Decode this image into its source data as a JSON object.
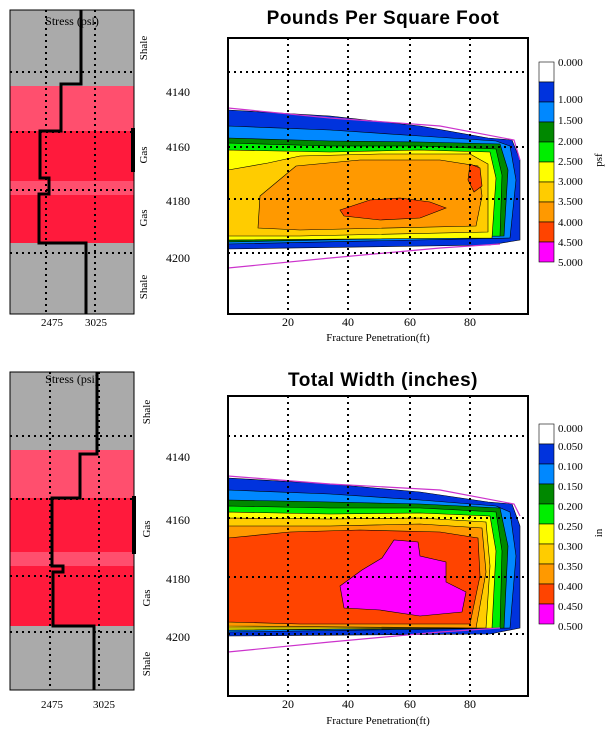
{
  "colors": {
    "gray": "#aaaaaa",
    "pink_layer": "#ff4f6e",
    "red_layer": "#ff1a3c",
    "outline": "#000000",
    "envelope": "#cc33cc"
  },
  "panels": [
    {
      "title": "Pounds Per Square Foot",
      "x_label": "Fracture Penetration(ft)",
      "x_ticks": [
        "20",
        "40",
        "60",
        "80"
      ],
      "stress_label": "Stress (psi)",
      "stress_ticks": [
        "2475",
        "3025"
      ],
      "depth_ticks": [
        "4140",
        "4160",
        "4180",
        "4200"
      ],
      "lithology": [
        "Shale",
        "Gas",
        "Gas",
        "Shale"
      ],
      "colorbar_unit": "psf",
      "colorbar_levels": [
        "0.000",
        "1.000",
        "1.500",
        "2.000",
        "2.500",
        "3.000",
        "3.500",
        "4.000",
        "4.500",
        "5.000"
      ]
    },
    {
      "title": "Total Width (inches)",
      "x_label": "Fracture Penetration(ft)",
      "x_ticks": [
        "20",
        "40",
        "60",
        "80"
      ],
      "stress_label": "Stress (psi)",
      "stress_ticks": [
        "2475",
        "3025"
      ],
      "depth_ticks": [
        "4140",
        "4160",
        "4180",
        "4200"
      ],
      "lithology": [
        "Shale",
        "Gas",
        "Gas",
        "Shale"
      ],
      "colorbar_unit": "in",
      "colorbar_levels": [
        "0.000",
        "0.050",
        "0.100",
        "0.150",
        "0.200",
        "0.250",
        "0.300",
        "0.350",
        "0.400",
        "0.450",
        "0.500"
      ]
    }
  ],
  "chart_data": [
    {
      "type": "heatmap",
      "title": "Pounds Per Square Foot",
      "xlabel": "Fracture Penetration(ft)",
      "x_ticks": [
        20,
        40,
        60,
        80
      ],
      "xlim": [
        0,
        100
      ],
      "colorbar": {
        "unit": "psf",
        "levels": [
          0.0,
          1.0,
          1.5,
          2.0,
          2.5,
          3.0,
          3.5,
          4.0,
          4.5,
          5.0
        ],
        "colors": [
          "#ffffff",
          "#0033dd",
          "#0088ff",
          "#008800",
          "#00ee00",
          "#ffff00",
          "#ffcc00",
          "#ff9900",
          "#ff4400",
          "#ff00ff"
        ]
      },
      "stress_profile": {
        "xlabel": "Stress (psi)",
        "x_ticks": [
          2475,
          3025
        ],
        "depth_ticks": [
          4140,
          4160,
          4180,
          4200
        ],
        "zones": [
          "Shale",
          "Gas",
          "Gas",
          "Shale"
        ]
      }
    },
    {
      "type": "heatmap",
      "title": "Total Width (inches)",
      "xlabel": "Fracture Penetration(ft)",
      "x_ticks": [
        20,
        40,
        60,
        80
      ],
      "xlim": [
        0,
        100
      ],
      "colorbar": {
        "unit": "in",
        "levels": [
          0.0,
          0.05,
          0.1,
          0.15,
          0.2,
          0.25,
          0.3,
          0.35,
          0.4,
          0.45,
          0.5
        ],
        "colors": [
          "#ffffff",
          "#0033dd",
          "#0088ff",
          "#008800",
          "#00ee00",
          "#ffff00",
          "#ffcc00",
          "#ff9900",
          "#ff4400",
          "#ff00ff"
        ]
      },
      "stress_profile": {
        "xlabel": "Stress (psi)",
        "x_ticks": [
          2475,
          3025
        ],
        "depth_ticks": [
          4140,
          4160,
          4180,
          4200
        ],
        "zones": [
          "Shale",
          "Gas",
          "Gas",
          "Shale"
        ]
      }
    }
  ]
}
